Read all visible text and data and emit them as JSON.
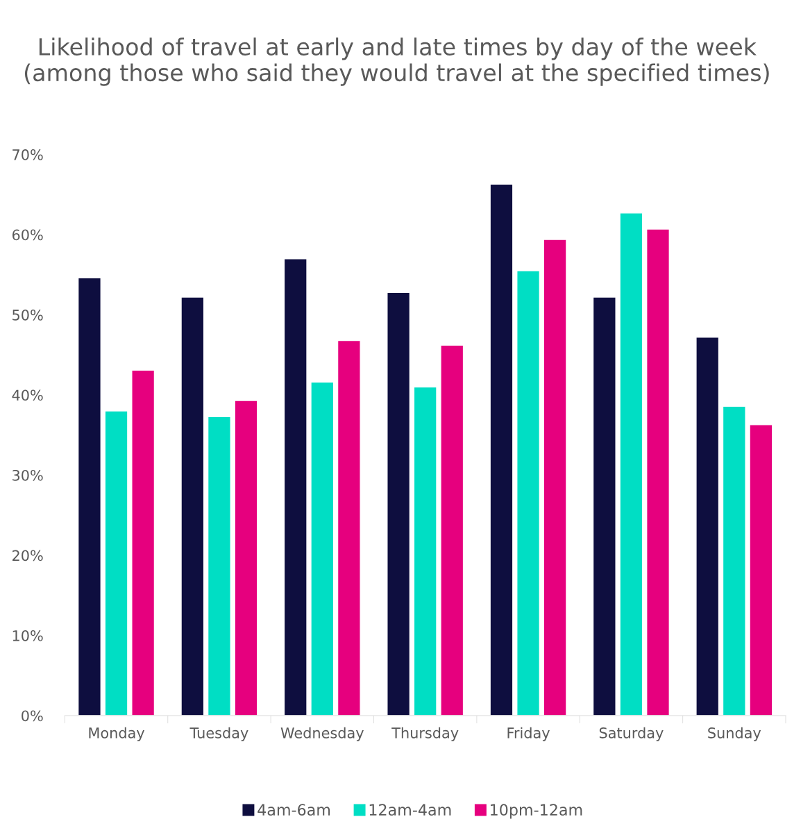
{
  "chart_data": {
    "type": "bar",
    "title": "Likelihood of travel at early and late times by day of the week (among those who said they would travel at the specified times)",
    "categories": [
      "Monday",
      "Tuesday",
      "Wednesday",
      "Thursday",
      "Friday",
      "Saturday",
      "Sunday"
    ],
    "series": [
      {
        "name": "4am-6am",
        "color": "#0e0e3f",
        "values": [
          54.6,
          52.2,
          57.0,
          52.8,
          66.3,
          52.2,
          47.2
        ]
      },
      {
        "name": "12am-4am",
        "color": "#00dec4",
        "values": [
          38.0,
          37.3,
          41.6,
          41.0,
          55.5,
          62.7,
          38.6
        ]
      },
      {
        "name": "10pm-12am",
        "color": "#e6007e",
        "values": [
          43.1,
          39.3,
          46.8,
          46.2,
          59.4,
          60.7,
          36.3
        ]
      }
    ],
    "ylim": [
      0,
      70
    ],
    "yticks": [
      {
        "value": 0,
        "label": "0%"
      },
      {
        "value": 10,
        "label": "10%"
      },
      {
        "value": 20,
        "label": "20%"
      },
      {
        "value": 30,
        "label": "30%"
      },
      {
        "value": 40,
        "label": "40%"
      },
      {
        "value": 50,
        "label": "50%"
      },
      {
        "value": 60,
        "label": "60%"
      },
      {
        "value": 70,
        "label": "70%"
      }
    ],
    "grid": false,
    "legend": "bottom"
  }
}
